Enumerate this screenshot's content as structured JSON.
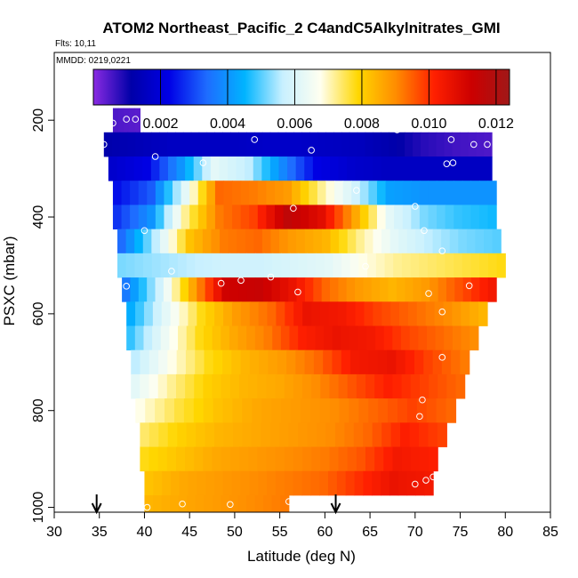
{
  "chart_data": {
    "type": "heatmap",
    "title": "ATOM2 Northeast_Pacific_2 C4andC5Alkylnitrates_GMI",
    "flights_label": "Flts: 10,11",
    "mmdd_label": "MMDD: 0219,0221",
    "xlabel": "Latitude (deg N)",
    "ylabel": "PSXC (mbar)",
    "xlim": [
      30,
      85
    ],
    "ylim": [
      1010,
      60
    ],
    "y_reversed": true,
    "xticks": [
      30,
      35,
      40,
      45,
      50,
      55,
      60,
      65,
      70,
      75,
      80,
      85
    ],
    "yticks": [
      200,
      400,
      600,
      800,
      1000
    ],
    "colorbar": {
      "range": [
        0.0,
        0.0124
      ],
      "ticks": [
        "0.002",
        "0.004",
        "0.006",
        "0.008",
        "0.010",
        "0.012"
      ],
      "tick_values": [
        0.002,
        0.004,
        0.006,
        0.008,
        0.01,
        0.012
      ],
      "colors": [
        "#8a2be2",
        "#0000a8",
        "#0000e6",
        "#1e6cff",
        "#00b4ff",
        "#c8f0ff",
        "#fffff0",
        "#ffd700",
        "#ff8c00",
        "#ff2000",
        "#cc0000",
        "#a01818"
      ]
    },
    "rows": [
      {
        "p": 200,
        "lat_min": 36.5,
        "lat_max": 39.5,
        "values": [
          0.0005,
          0.0004
        ]
      },
      {
        "p": 250,
        "lat_min": 35.5,
        "lat_max": 78.5,
        "values": [
          0.0012,
          0.0014,
          0.0016,
          0.0016,
          0.0016,
          0.0017,
          0.0017,
          0.0016,
          0.0015,
          0.0012,
          0.0008,
          0.0006,
          0.0005
        ]
      },
      {
        "p": 300,
        "lat_min": 36.0,
        "lat_max": 78.5,
        "values": [
          0.0018,
          0.0022,
          0.004,
          0.0062,
          0.0056,
          0.0038,
          0.0022,
          0.0018,
          0.0016,
          0.0016,
          0.0016,
          0.0016
        ]
      },
      {
        "p": 350,
        "lat_min": 36.5,
        "lat_max": 79.0,
        "values": [
          0.0024,
          0.0032,
          0.0062,
          0.0094,
          0.0092,
          0.0088,
          0.0072,
          0.0058,
          0.0042,
          0.004,
          0.004,
          0.004
        ]
      },
      {
        "p": 400,
        "lat_min": 36.5,
        "lat_max": 79.0,
        "values": [
          0.0028,
          0.004,
          0.0072,
          0.0092,
          0.0098,
          0.0116,
          0.0108,
          0.0086,
          0.0062,
          0.0052,
          0.0048,
          0.0046
        ]
      },
      {
        "p": 450,
        "lat_min": 37.0,
        "lat_max": 79.5,
        "values": [
          0.0034,
          0.0056,
          0.0082,
          0.0092,
          0.0094,
          0.0088,
          0.0084,
          0.0072,
          0.0062,
          0.0056,
          0.0052,
          0.005
        ]
      },
      {
        "p": 500,
        "lat_min": 37.0,
        "lat_max": 80.0,
        "values": [
          0.0052,
          0.0054,
          0.0056,
          0.0058,
          0.0058,
          0.006,
          0.0062,
          0.0068,
          0.0072,
          0.0074,
          0.0076,
          0.0078
        ]
      },
      {
        "p": 550,
        "lat_min": 37.5,
        "lat_max": 79.0,
        "values": [
          0.0036,
          0.0058,
          0.0086,
          0.0112,
          0.0114,
          0.0106,
          0.0094,
          0.0088,
          0.0084,
          0.0088,
          0.0096,
          0.0104
        ]
      },
      {
        "p": 600,
        "lat_min": 38.0,
        "lat_max": 78.0,
        "values": [
          0.0044,
          0.0062,
          0.0078,
          0.0088,
          0.0094,
          0.0106,
          0.0104,
          0.0098,
          0.0094,
          0.009,
          0.0084
        ]
      },
      {
        "p": 650,
        "lat_min": 38.0,
        "lat_max": 77.0,
        "values": [
          0.0048,
          0.0064,
          0.0078,
          0.0086,
          0.0092,
          0.0102,
          0.0106,
          0.0104,
          0.0098,
          0.0094,
          0.009
        ]
      },
      {
        "p": 700,
        "lat_min": 38.5,
        "lat_max": 76.0,
        "values": [
          0.0056,
          0.0068,
          0.0078,
          0.0084,
          0.0088,
          0.0094,
          0.0104,
          0.0106,
          0.0098,
          0.0092
        ]
      },
      {
        "p": 750,
        "lat_min": 38.5,
        "lat_max": 75.5,
        "values": [
          0.0062,
          0.0072,
          0.008,
          0.0084,
          0.0086,
          0.009,
          0.0096,
          0.0102,
          0.0098,
          0.0094
        ]
      },
      {
        "p": 800,
        "lat_min": 39.0,
        "lat_max": 74.5,
        "values": [
          0.0068,
          0.0076,
          0.0082,
          0.0086,
          0.0088,
          0.009,
          0.0094,
          0.0098,
          0.0094
        ]
      },
      {
        "p": 850,
        "lat_min": 39.5,
        "lat_max": 73.5,
        "values": [
          0.0074,
          0.008,
          0.0084,
          0.0086,
          0.0088,
          0.009,
          0.0094,
          0.0102,
          0.0098
        ]
      },
      {
        "p": 900,
        "lat_min": 39.5,
        "lat_max": 72.5,
        "values": [
          0.0078,
          0.0082,
          0.0086,
          0.0088,
          0.009,
          0.0092,
          0.0096,
          0.0104,
          0.0102
        ]
      },
      {
        "p": 950,
        "lat_min": 40.0,
        "lat_max": 72.0,
        "values": [
          0.0082,
          0.0086,
          0.0088,
          0.009,
          0.0092,
          0.0094,
          0.01,
          0.0106,
          0.0104
        ]
      },
      {
        "p": 1000,
        "lat_min": 40.0,
        "lat_max": 56.0,
        "values": [
          0.0084,
          0.0086,
          0.0088,
          0.009,
          0.0092
        ]
      }
    ],
    "points": [
      [
        35.5,
        250
      ],
      [
        36.5,
        206
      ],
      [
        38,
        198
      ],
      [
        39,
        198
      ],
      [
        41.2,
        275
      ],
      [
        46.5,
        288
      ],
      [
        52.2,
        240
      ],
      [
        58.5,
        262
      ],
      [
        68,
        220
      ],
      [
        74,
        240
      ],
      [
        76.5,
        250
      ],
      [
        78,
        250
      ],
      [
        73.5,
        290
      ],
      [
        74.2,
        288
      ],
      [
        63.5,
        345
      ],
      [
        70,
        378
      ],
      [
        73,
        470
      ],
      [
        56.5,
        382
      ],
      [
        40.0,
        428
      ],
      [
        71,
        428
      ],
      [
        43,
        512
      ],
      [
        64.5,
        502
      ],
      [
        38,
        543
      ],
      [
        48.5,
        537
      ],
      [
        50.7,
        531
      ],
      [
        54,
        524
      ],
      [
        57,
        555
      ],
      [
        71.5,
        558
      ],
      [
        76,
        542
      ],
      [
        73,
        596
      ],
      [
        73,
        690
      ],
      [
        70.8,
        778
      ],
      [
        70.5,
        812
      ],
      [
        71.2,
        944
      ],
      [
        70,
        952
      ],
      [
        72,
        937
      ],
      [
        40.3,
        1000
      ],
      [
        44.2,
        993
      ],
      [
        49.5,
        994
      ],
      [
        56.0,
        988
      ]
    ],
    "arrows_lat": [
      34.7,
      61.2
    ]
  }
}
